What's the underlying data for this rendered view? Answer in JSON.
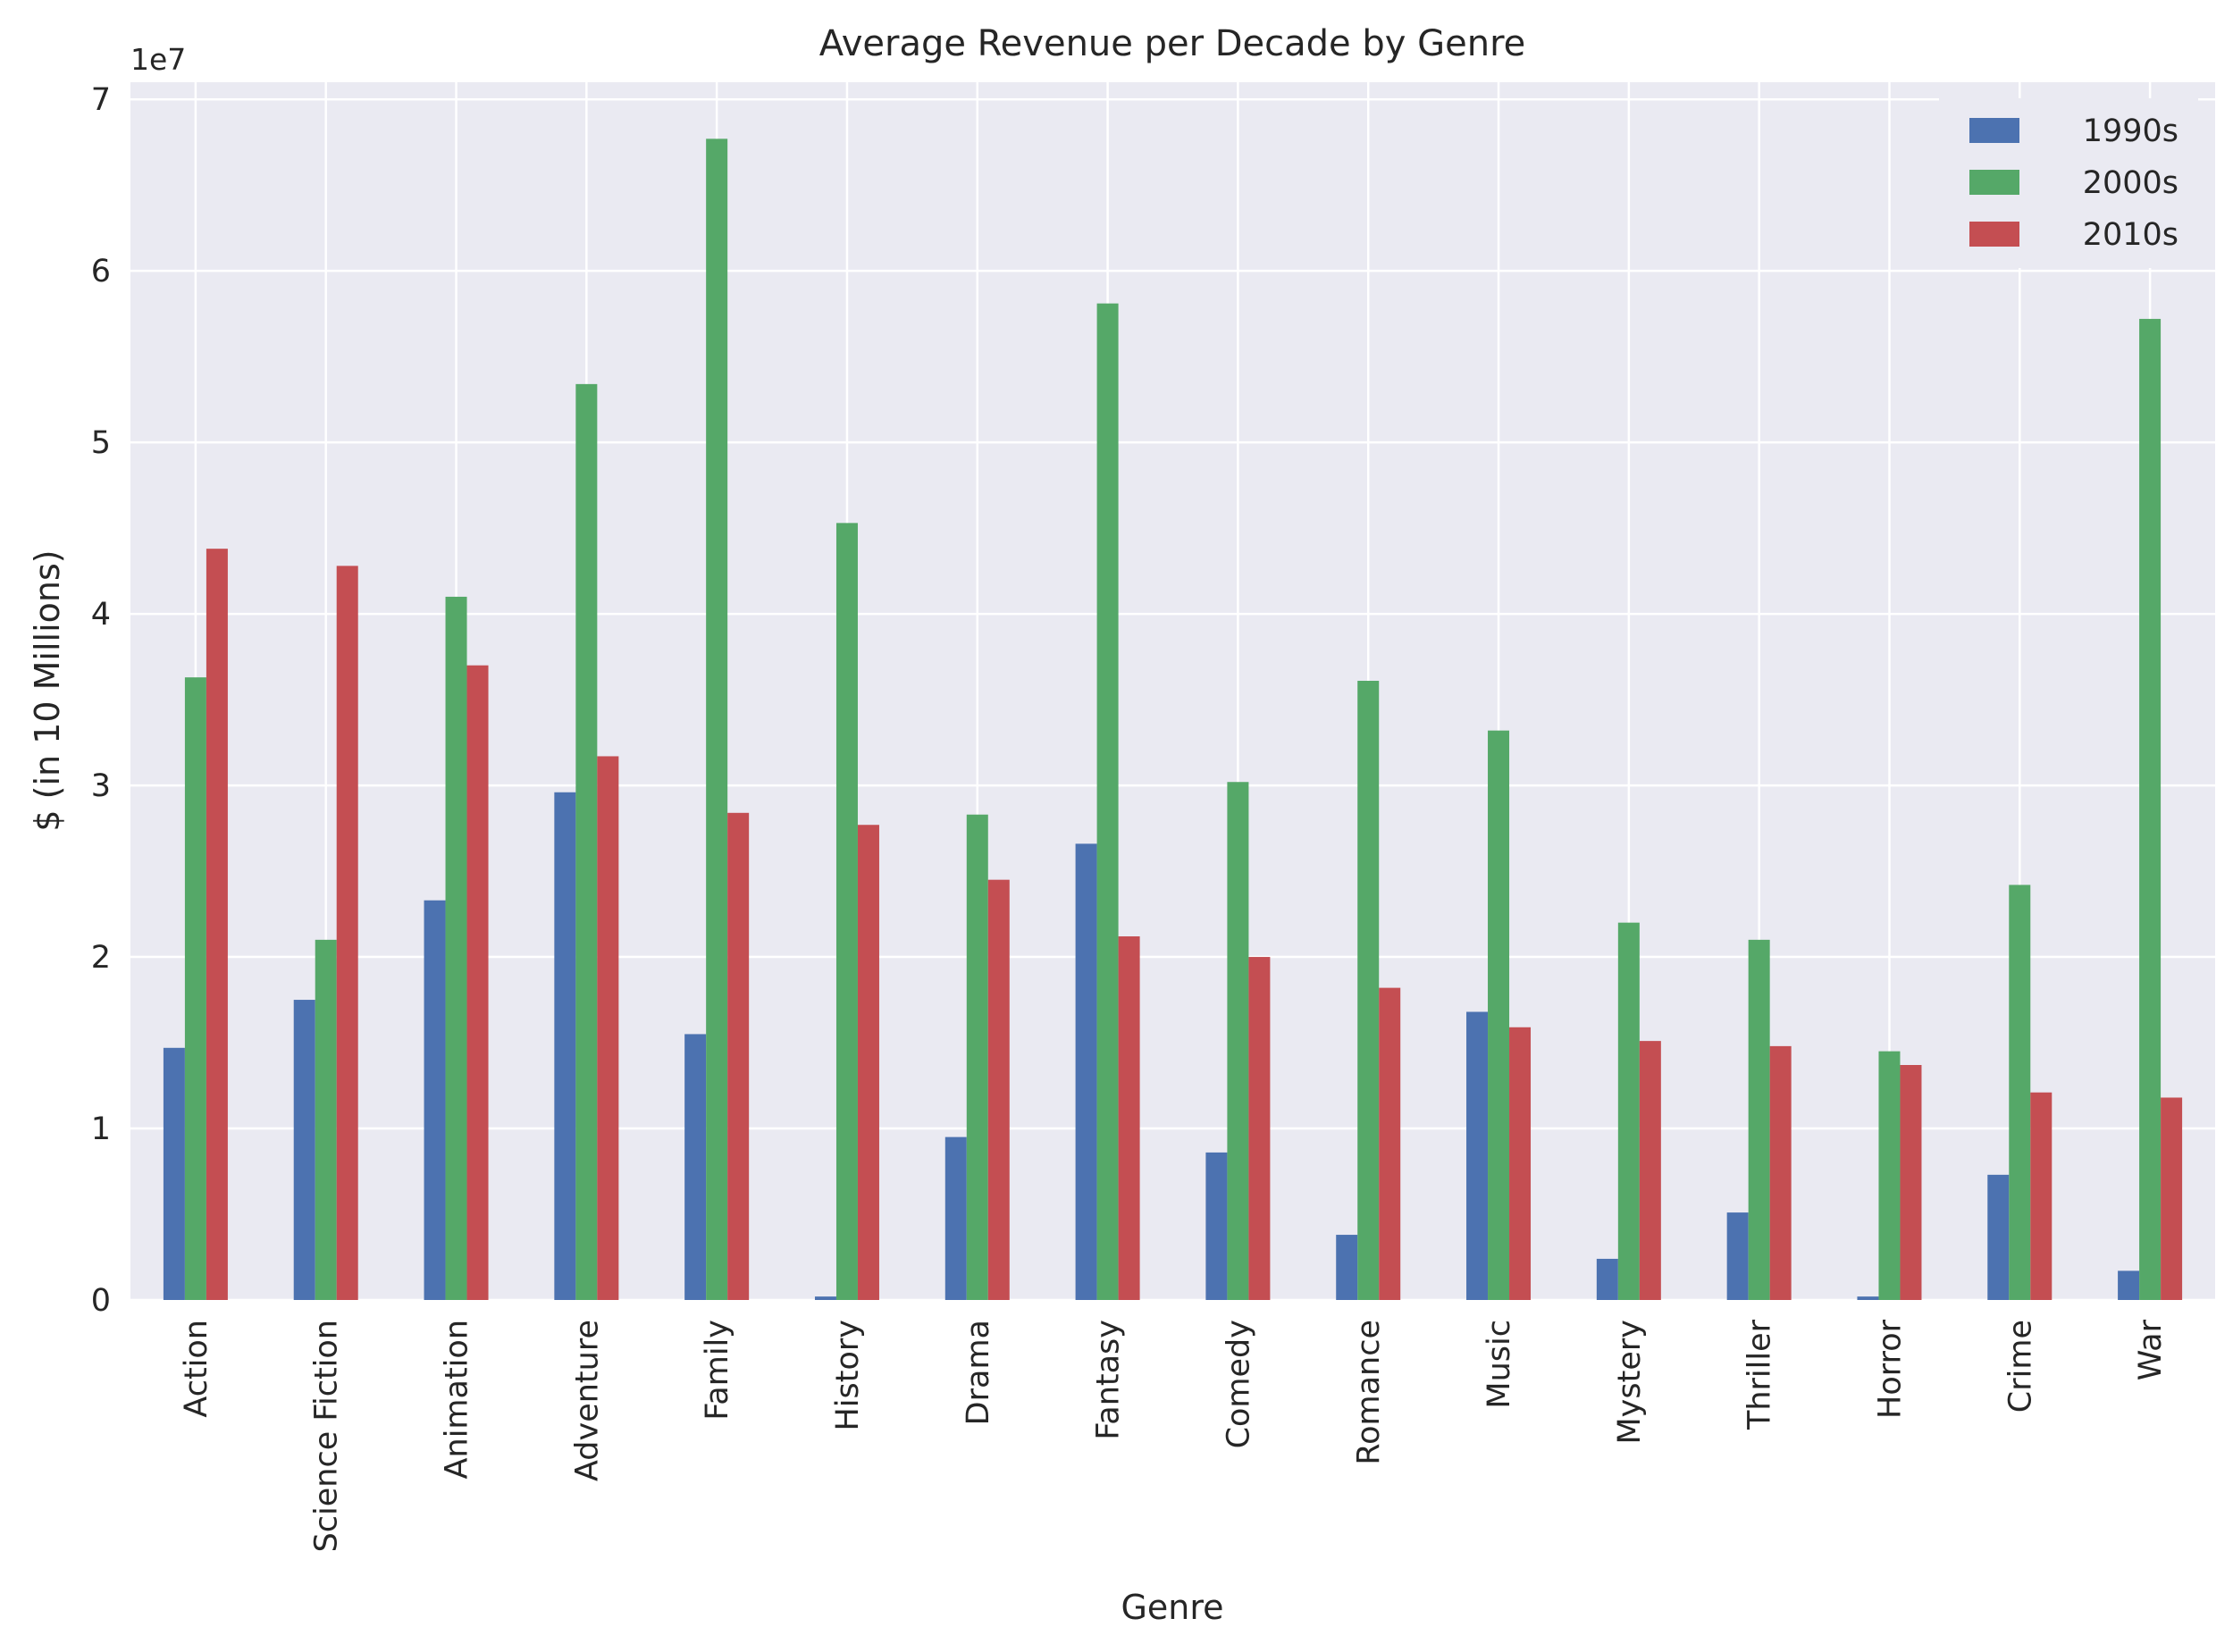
{
  "chart_data": {
    "type": "bar",
    "title": "Average Revenue per Decade by Genre",
    "xlabel": "Genre",
    "ylabel": "$ (in 10 Millions)",
    "offset_label": "1e7",
    "ylim": [
      0,
      71000000
    ],
    "yticks": [
      0,
      10000000,
      20000000,
      30000000,
      40000000,
      50000000,
      60000000,
      70000000
    ],
    "ytick_labels": [
      "0",
      "1",
      "2",
      "3",
      "4",
      "5",
      "6",
      "7"
    ],
    "grid": true,
    "legend_position": "top-right",
    "categories": [
      "Action",
      "Science Fiction",
      "Animation",
      "Adventure",
      "Family",
      "History",
      "Drama",
      "Fantasy",
      "Comedy",
      "Romance",
      "Music",
      "Mystery",
      "Thriller",
      "Horror",
      "Crime",
      "War"
    ],
    "series": [
      {
        "name": "1990s",
        "color": "#4c72b0",
        "values": [
          14700000,
          17500000,
          23300000,
          29600000,
          15500000,
          200000,
          9500000,
          26600000,
          8600000,
          3800000,
          16800000,
          2400000,
          5100000,
          200000,
          7300000,
          1700000
        ]
      },
      {
        "name": "2000s",
        "color": "#55a868",
        "values": [
          36300000,
          21000000,
          41000000,
          53400000,
          67700000,
          45300000,
          28300000,
          58100000,
          30200000,
          36100000,
          33200000,
          22000000,
          21000000,
          14500000,
          24200000,
          57200000
        ]
      },
      {
        "name": "2010s",
        "color": "#c44e52",
        "values": [
          43800000,
          42800000,
          37000000,
          31700000,
          28400000,
          27700000,
          24500000,
          21200000,
          20000000,
          18200000,
          15900000,
          15100000,
          14800000,
          13700000,
          12100000,
          11800000
        ]
      }
    ]
  }
}
